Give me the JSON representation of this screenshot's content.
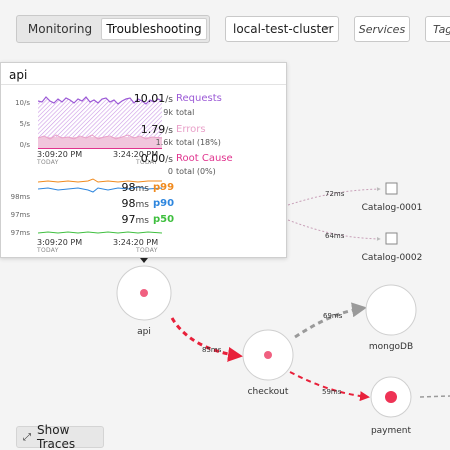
{
  "tabs": {
    "monitoring": "Monitoring",
    "troubleshooting": "Troubleshooting"
  },
  "cluster": {
    "label": "local-test-cluster"
  },
  "services_label": "Services",
  "tags_label": "Tag",
  "show_traces": "Show Traces",
  "colors": {
    "requests": "#9b59d6",
    "errors": "#e9a1c9",
    "root_cause": "#e0338e",
    "p99": "#f08a1e",
    "p90": "#2e86de",
    "p50": "#3fbf3f",
    "edge_hot": "#e8203a",
    "node_hot": "#ee3355"
  },
  "nodes": {
    "api": "api",
    "checkout": "checkout",
    "mongodb": "mongoDB",
    "payment": "payment",
    "catalog1": "Catalog-0001",
    "catalog2": "Catalog-0002"
  },
  "edges": {
    "api_checkout": "85ms",
    "checkout_mongodb": "69ms",
    "checkout_payment": "59ms",
    "catalog1": "72ms",
    "catalog2": "64ms"
  },
  "popup": {
    "title": "api",
    "rate_axis": {
      "ticks": [
        "10/s",
        "5/s",
        "0/s"
      ]
    },
    "latency_axis": {
      "ticks": [
        "98ms",
        "97ms",
        "97ms"
      ]
    },
    "time_start": "3:09:20 PM",
    "time_end": "3:24:20 PM",
    "day_label": "TODAY",
    "requests": {
      "value": "10.01",
      "unit": "/s",
      "label": "Requests",
      "total": "9k",
      "total_label": "total"
    },
    "errors": {
      "value": "1.79",
      "unit": "/s",
      "label": "Errors",
      "total": "1.6k",
      "total_label": "total (18%)"
    },
    "root_cause": {
      "value": "0.00",
      "unit": "/s",
      "label": "Root Cause",
      "total": "0",
      "total_label": "total (0%)"
    },
    "p99": {
      "value": "98",
      "unit": "ms",
      "label": "p99"
    },
    "p90": {
      "value": "98",
      "unit": "ms",
      "label": "p90"
    },
    "p50": {
      "value": "97",
      "unit": "ms",
      "label": "p50"
    }
  }
}
